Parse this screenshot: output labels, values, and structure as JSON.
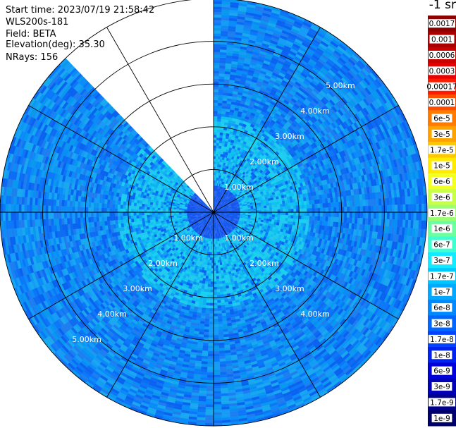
{
  "info": {
    "start_time": "Start time: 2023/07/19 21:58:42",
    "instrument": "WLS200s-181",
    "field": "Field: BETA",
    "elevation": "Elevation(deg): 35.30",
    "nrays": "NRays: 156"
  },
  "colorbar": {
    "unit_title": "-1 sr",
    "labels": [
      "0.0017",
      "0.001",
      "0.0006",
      "0.0003",
      "0.00017",
      "0.0001",
      "6e-5",
      "3e-5",
      "1.7e-5",
      "1e-5",
      "6e-6",
      "3e-6",
      "1.7e-6",
      "1e-6",
      "6e-7",
      "3e-7",
      "1.7e-7",
      "1e-7",
      "6e-8",
      "3e-8",
      "1.7e-8",
      "1e-8",
      "6e-9",
      "3e-9",
      "1.7e-9",
      "1e-9"
    ],
    "colors": [
      "#8b0000",
      "#a80000",
      "#c80000",
      "#e60000",
      "#ff1a00",
      "#ff4d00",
      "#ff7a00",
      "#ffa300",
      "#ffc800",
      "#ffea00",
      "#f4ff22",
      "#c8ff4a",
      "#9cff72",
      "#6cffa0",
      "#40ffd2",
      "#14eaff",
      "#00c8ff",
      "#00a8ff",
      "#0088ff",
      "#0066ff",
      "#0044ff",
      "#0022ee",
      "#0000d8",
      "#0000b4",
      "#00008e",
      "#00006a"
    ]
  },
  "chart_data": {
    "type": "heatmap",
    "projection": "polar PPI",
    "range_rings_km": [
      1,
      2,
      3,
      4,
      5
    ],
    "range_labels": {
      "north_east": [
        "1.00km",
        "2.00km",
        "3.00km",
        "4.00km",
        "5.00km"
      ],
      "south_east": [
        "1.00km",
        "2.00km",
        "3.00km",
        "4.00km"
      ],
      "south_west": [
        "1.00km",
        "2.00km",
        "3.00km",
        "4.00km",
        "5.00km"
      ]
    },
    "spokes_deg": [
      0,
      30,
      60,
      90,
      120,
      150,
      180,
      210,
      240,
      270,
      300,
      330
    ],
    "max_range_km": 5.0,
    "no_data_sector_deg": [
      315,
      360
    ],
    "field": "BETA",
    "elevation_deg": 35.3,
    "nrays": 156
  }
}
